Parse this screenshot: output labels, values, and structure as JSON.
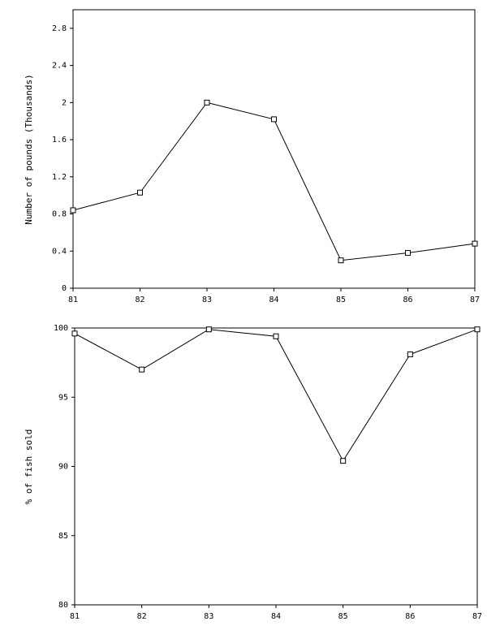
{
  "chart_data": [
    {
      "type": "line",
      "y_label": "Number of pounds (Thousands)",
      "x": [
        81,
        82,
        83,
        84,
        85,
        86,
        87
      ],
      "xlim": [
        81,
        87
      ],
      "xticks": [
        81,
        82,
        83,
        84,
        85,
        86,
        87
      ],
      "ylim": [
        0,
        3.0
      ],
      "yticks": [
        0,
        0.4,
        0.8,
        1.2,
        1.6,
        2,
        2.4,
        2.8
      ],
      "series": [
        {
          "color": "#000000",
          "values": [
            0.84,
            1.03,
            2.0,
            1.82,
            0.3,
            0.38,
            0.48
          ]
        }
      ]
    },
    {
      "type": "line",
      "y_label": "% of fish sold",
      "x": [
        81,
        82,
        83,
        84,
        85,
        86,
        87
      ],
      "xlim": [
        81,
        87
      ],
      "xticks": [
        81,
        82,
        83,
        84,
        85,
        86,
        87
      ],
      "ylim": [
        80,
        100
      ],
      "yticks": [
        80,
        85,
        90,
        95,
        100
      ],
      "series": [
        {
          "color": "#000000",
          "values": [
            99.6,
            97.0,
            99.9,
            99.4,
            90.4,
            98.1,
            99.9
          ]
        }
      ]
    }
  ]
}
